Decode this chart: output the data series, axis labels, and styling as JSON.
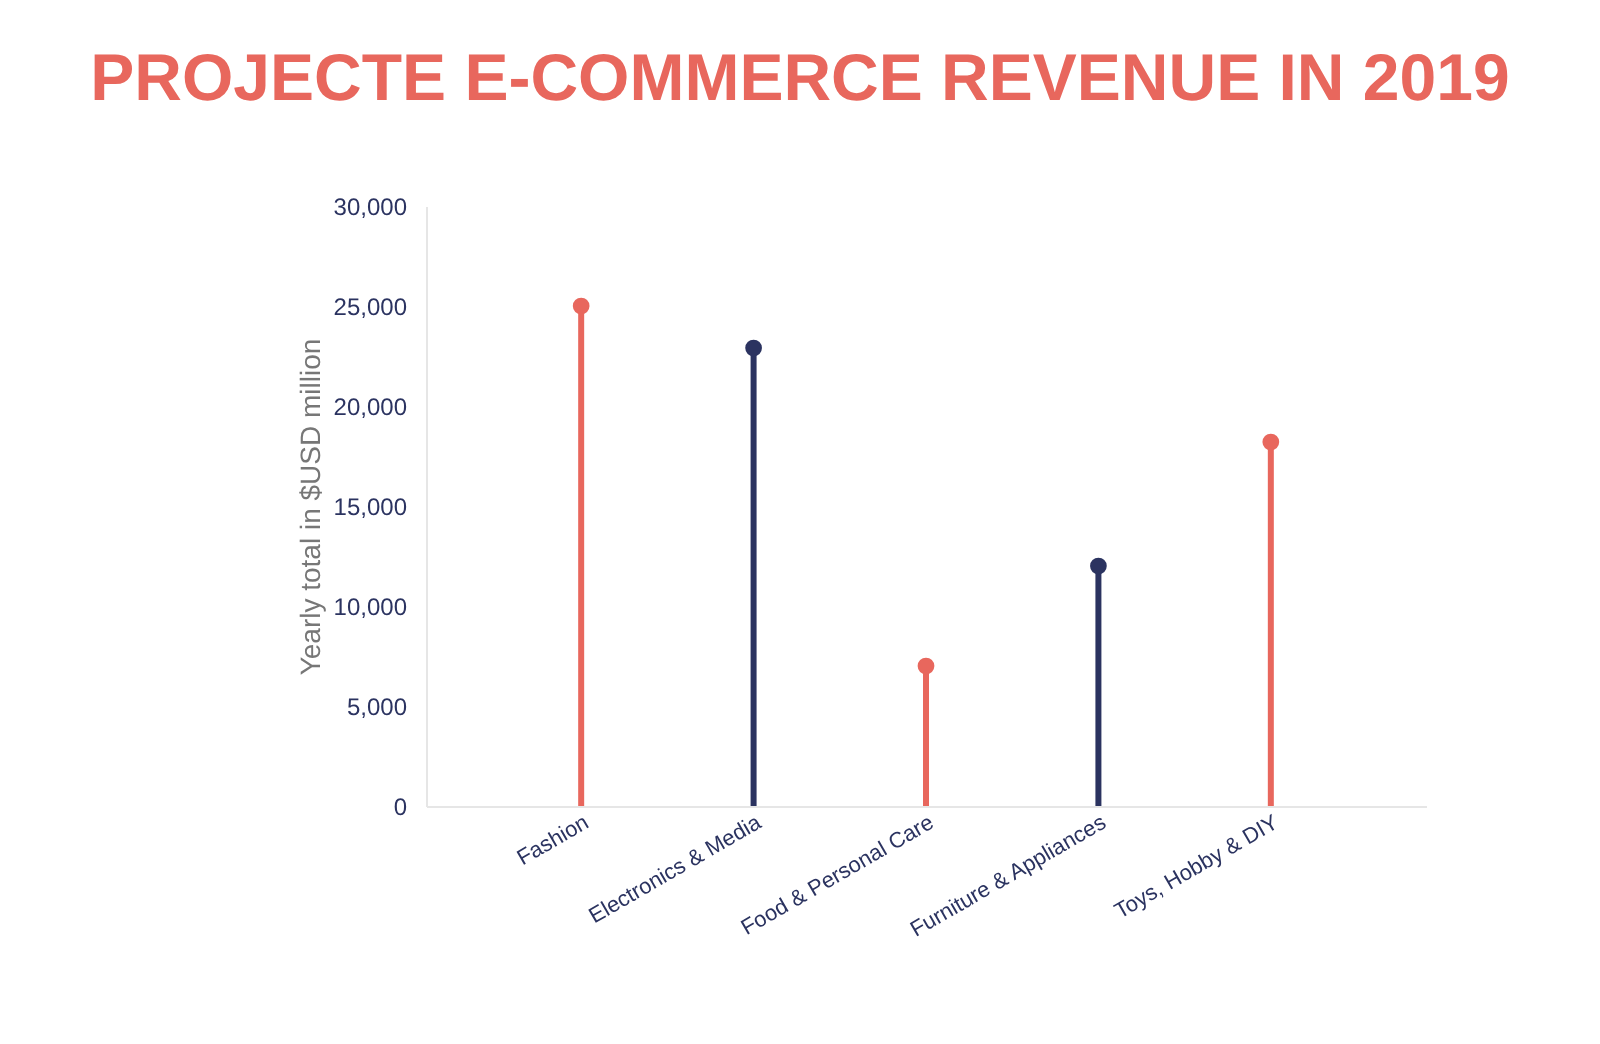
{
  "chart_data": {
    "type": "lollipop",
    "title": "PROJECTE E-COMMERCE REVENUE IN 2019",
    "ylabel": "Yearly total in $USD million",
    "categories": [
      "Fashion",
      "Electronics & Media",
      "Food & Personal Care",
      "Furniture & Appliances",
      "Toys, Hobby & DIY"
    ],
    "values": [
      25000,
      22900,
      7000,
      12000,
      18200
    ],
    "colors": [
      "#e8675d",
      "#2b3360",
      "#e8675d",
      "#2b3360",
      "#e8675d"
    ],
    "ylim": [
      0,
      30000
    ],
    "yticks": [
      0,
      {
        "value": 5000,
        "label": "5,000"
      },
      {
        "value": 10000,
        "label": "10,000"
      },
      {
        "value": 15000,
        "label": "15,000"
      },
      {
        "value": 20000,
        "label": "20,000"
      },
      {
        "value": 25000,
        "label": "25,000"
      },
      {
        "value": 30000,
        "label": "30,000"
      }
    ],
    "grid": false,
    "marker": "circle"
  }
}
